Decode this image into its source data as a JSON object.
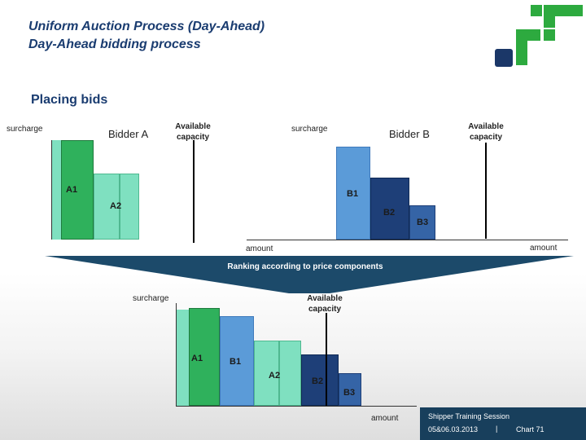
{
  "header": {
    "title": "Uniform Auction Process (Day-Ahead)",
    "subtitle": "Day-Ahead bidding process"
  },
  "section_title": "Placing bids",
  "bidder_a": {
    "name": "Bidder A",
    "y_label": "surcharge",
    "capacity_label": "Available capacity",
    "bars": [
      "A1",
      "A2"
    ]
  },
  "bidder_b": {
    "name": "Bidder B",
    "y_label": "surcharge",
    "capacity_label": "Available capacity",
    "bars": [
      "B1",
      "B2",
      "B3"
    ],
    "x_label_left": "amount",
    "x_label_right": "amount"
  },
  "ranking": {
    "banner_text": "Ranking according to price components",
    "y_label": "surcharge",
    "capacity_label": "Available capacity",
    "bars": [
      "A1",
      "B1",
      "A2",
      "B2",
      "B3"
    ],
    "x_label": "amount"
  },
  "colors": {
    "a1": "#2fb15c",
    "a2": "#7fe0c0",
    "b1": "#5b9bd8",
    "b2": "#1e3f78",
    "b3": "#3564a6",
    "banner": "#1c4a6a",
    "brand_green": "#2daa3f",
    "brand_navy": "#1b3768"
  },
  "footer": {
    "line1": "Shipper Training Session",
    "date": "05&06.03.2013",
    "separator": "|",
    "chart": "Chart 71"
  }
}
